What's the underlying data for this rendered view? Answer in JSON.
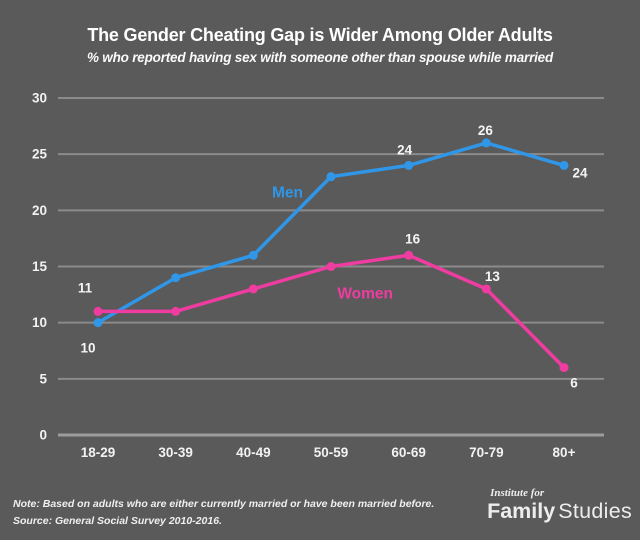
{
  "title": "The Gender Cheating Gap is Wider Among Older Adults",
  "subtitle": "% who reported having sex with someone other than spouse while married",
  "note": {
    "line1": "Note: Based on adults who are either currently married or have been married before.",
    "line2": "Source: General Social Survey 2010-2016."
  },
  "logo": {
    "top_text": "Institute for",
    "bold_text": "Family",
    "light_text": "Studies"
  },
  "colors": {
    "background": "#5A5A5A",
    "gridline": "#8B8B8B",
    "axis_line": "#9C9C9C",
    "text": "#FFFFFF",
    "men": "#2F96E8",
    "women": "#EE3CA0"
  },
  "chart_data": {
    "type": "line",
    "title": "The Gender Cheating Gap is Wider Among Older Adults",
    "subtitle": "% who reported having sex with someone other than spouse while married",
    "categories": [
      "18-29",
      "30-39",
      "40-49",
      "50-59",
      "60-69",
      "70-79",
      "80+"
    ],
    "xlabel": "",
    "ylabel": "",
    "ylim": [
      0,
      30
    ],
    "ytick_step": 5,
    "grid": "horizontal-only",
    "legend": "inline-series-labels",
    "series": [
      {
        "name": "Men",
        "color_key": "men",
        "values": [
          10,
          14,
          16,
          23,
          24,
          26,
          24
        ],
        "point_labels": [
          {
            "index": 0,
            "text": "10",
            "dx": -10,
            "dy": 30
          },
          {
            "index": 4,
            "text": "24",
            "dx": -4,
            "dy": -11
          },
          {
            "index": 5,
            "text": "26",
            "dx": -1,
            "dy": -8
          },
          {
            "index": 6,
            "text": "24",
            "dx": 16,
            "dy": 12
          }
        ],
        "series_label": {
          "text": "Men",
          "cx": 2.44,
          "v": 21.6
        }
      },
      {
        "name": "Women",
        "color_key": "women",
        "values": [
          11,
          11,
          13,
          15,
          16,
          13,
          6
        ],
        "point_labels": [
          {
            "index": 0,
            "text": "11",
            "dx": -13,
            "dy": -19
          },
          {
            "index": 4,
            "text": "16",
            "dx": 4,
            "dy": -12
          },
          {
            "index": 5,
            "text": "13",
            "dx": 6,
            "dy": -8
          },
          {
            "index": 6,
            "text": "6",
            "dx": 10,
            "dy": 20
          }
        ],
        "series_label": {
          "text": "Women",
          "cx": 3.44,
          "v": 12.6
        }
      }
    ]
  }
}
